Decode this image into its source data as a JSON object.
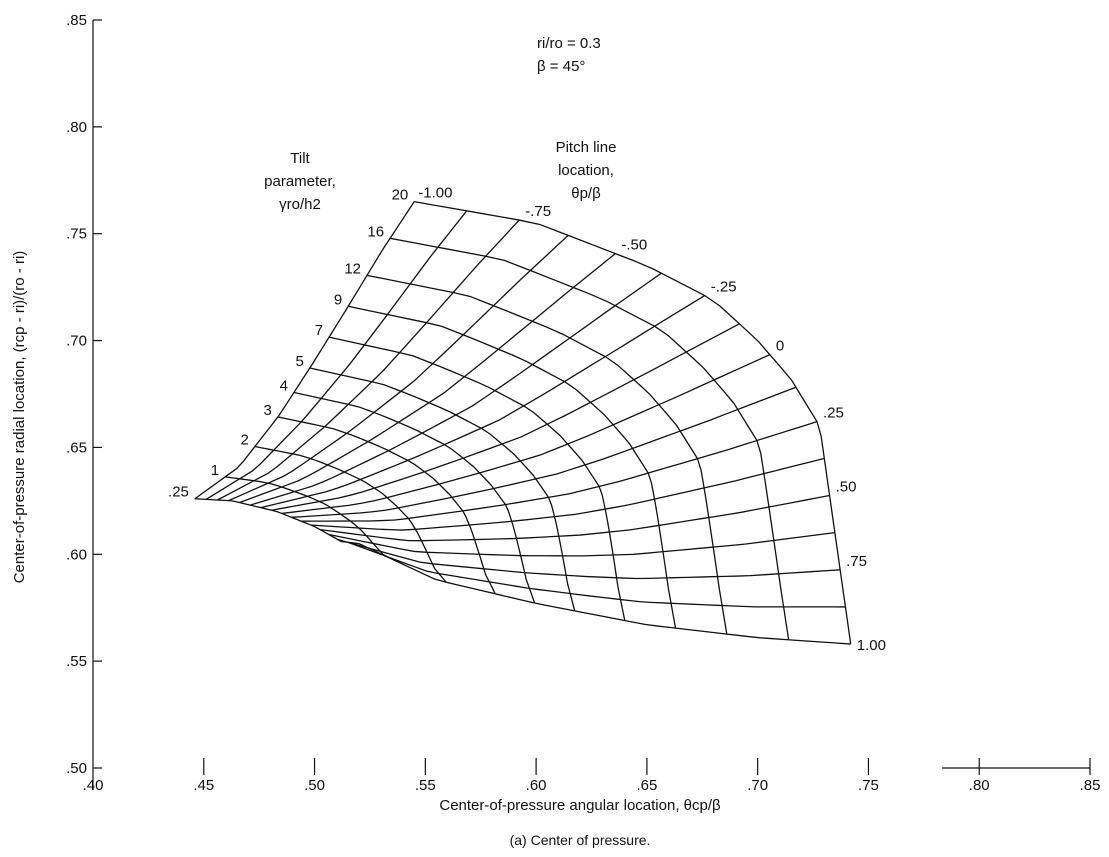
{
  "chart_data": {
    "type": "line",
    "title": "",
    "caption": "(a) Center of pressure.",
    "xlabel": "Center-of-pressure angular location, θcp/β",
    "ylabel": "Center-of-pressure radial location, (rcp - ri)/(ro - ri)",
    "xlim": [
      0.4,
      0.85
    ],
    "ylim": [
      0.5,
      0.85
    ],
    "x_tick_labels": [
      ".40",
      ".45",
      ".50",
      ".55",
      ".60",
      ".65",
      ".70",
      ".75",
      ".80",
      ".85"
    ],
    "y_tick_labels": [
      ".50",
      ".55",
      ".60",
      ".65",
      ".70",
      ".75",
      ".80",
      ".85"
    ],
    "parameters_text": [
      "ri/ro = 0.3",
      "β = 45°"
    ],
    "tilt_axis_title": [
      "Tilt",
      "parameter,",
      "γro/h2"
    ],
    "pitch_axis_title": [
      "Pitch line",
      "location,",
      "θp/β"
    ],
    "tilt_parameter_values": [
      0.25,
      1,
      2,
      3,
      4,
      5,
      7,
      9,
      12,
      16,
      20
    ],
    "tilt_parameter_labels": [
      ".25",
      "1",
      "2",
      "3",
      "4",
      "5",
      "7",
      "9",
      "12",
      "16",
      "20"
    ],
    "pitch_line_values": [
      -1.0,
      -0.75,
      -0.5,
      -0.25,
      0,
      0.25,
      0.5,
      0.75,
      1.0
    ],
    "pitch_line_labels": [
      "-1.00",
      "-.75",
      "-.50",
      "-.25",
      "0",
      ".25",
      ".50",
      ".75",
      "1.00"
    ],
    "boundary_curves": {
      "pitch_minus_1": [
        [
          0.446,
          0.626
        ],
        [
          0.466,
          0.641
        ],
        [
          0.484,
          0.665
        ],
        [
          0.499,
          0.689
        ],
        [
          0.514,
          0.714
        ],
        [
          0.531,
          0.743
        ],
        [
          0.545,
          0.765
        ]
      ],
      "pitch_plus_1": [
        [
          0.52,
          0.605
        ],
        [
          0.555,
          0.588
        ],
        [
          0.6,
          0.577
        ],
        [
          0.65,
          0.567
        ],
        [
          0.7,
          0.561
        ],
        [
          0.742,
          0.558
        ]
      ],
      "tilt_low": [
        [
          0.446,
          0.626
        ],
        [
          0.463,
          0.625
        ],
        [
          0.483,
          0.62
        ],
        [
          0.5,
          0.613
        ],
        [
          0.512,
          0.606
        ],
        [
          0.52,
          0.605
        ]
      ],
      "tilt_high": [
        [
          0.545,
          0.765
        ],
        [
          0.6,
          0.755
        ],
        [
          0.65,
          0.735
        ],
        [
          0.68,
          0.719
        ],
        [
          0.7,
          0.7
        ],
        [
          0.715,
          0.682
        ],
        [
          0.728,
          0.66
        ],
        [
          0.742,
          0.558
        ]
      ]
    }
  }
}
